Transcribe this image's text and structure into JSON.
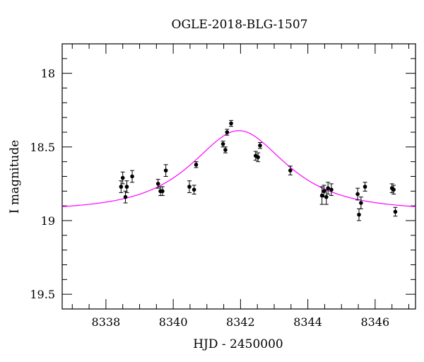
{
  "chart_data": {
    "type": "scatter",
    "title": "OGLE-2018-BLG-1507",
    "xlabel": "HJD - 2450000",
    "ylabel": "I magnitude",
    "xlim": [
      8336.7,
      8347.2
    ],
    "ylim": [
      19.6,
      17.8
    ],
    "y_inverted": true,
    "grid": false,
    "x_ticks": [
      8338,
      8340,
      8342,
      8344,
      8346
    ],
    "y_ticks": [
      18,
      18.5,
      19,
      19.5
    ],
    "colors": {
      "data": "#000000",
      "model": "#ff00ff",
      "axes": "#000000"
    },
    "series": [
      {
        "kind": "points_with_errorbars",
        "x": [
          8338.45,
          8338.5,
          8338.58,
          8338.62,
          8338.78,
          8339.55,
          8339.62,
          8339.68,
          8339.78,
          8340.48,
          8340.62,
          8340.68,
          8341.48,
          8341.55,
          8341.6,
          8341.72,
          8342.45,
          8342.52,
          8342.58,
          8343.48,
          8344.42,
          8344.48,
          8344.55,
          8344.6,
          8344.7,
          8345.48,
          8345.52,
          8345.58,
          8345.7,
          8346.5,
          8346.55,
          8346.6
        ],
        "y": [
          18.77,
          18.71,
          18.84,
          18.77,
          18.7,
          18.75,
          18.8,
          18.8,
          18.66,
          18.77,
          18.79,
          18.62,
          18.48,
          18.52,
          18.4,
          18.34,
          18.56,
          18.57,
          18.49,
          18.66,
          18.83,
          18.8,
          18.84,
          18.78,
          18.79,
          18.82,
          18.96,
          18.88,
          18.77,
          18.78,
          18.79,
          18.94
        ],
        "err": [
          0.04,
          0.04,
          0.04,
          0.04,
          0.04,
          0.03,
          0.03,
          0.03,
          0.04,
          0.04,
          0.03,
          0.02,
          0.02,
          0.02,
          0.02,
          0.02,
          0.03,
          0.03,
          0.02,
          0.03,
          0.06,
          0.04,
          0.05,
          0.04,
          0.04,
          0.04,
          0.04,
          0.04,
          0.03,
          0.03,
          0.03,
          0.03
        ]
      },
      {
        "kind": "model_curve",
        "baseline_mag": 18.93,
        "t0": 8341.95,
        "tE": 2.0,
        "u0": 0.72,
        "x_range": [
          8336.7,
          8347.2
        ]
      }
    ]
  }
}
